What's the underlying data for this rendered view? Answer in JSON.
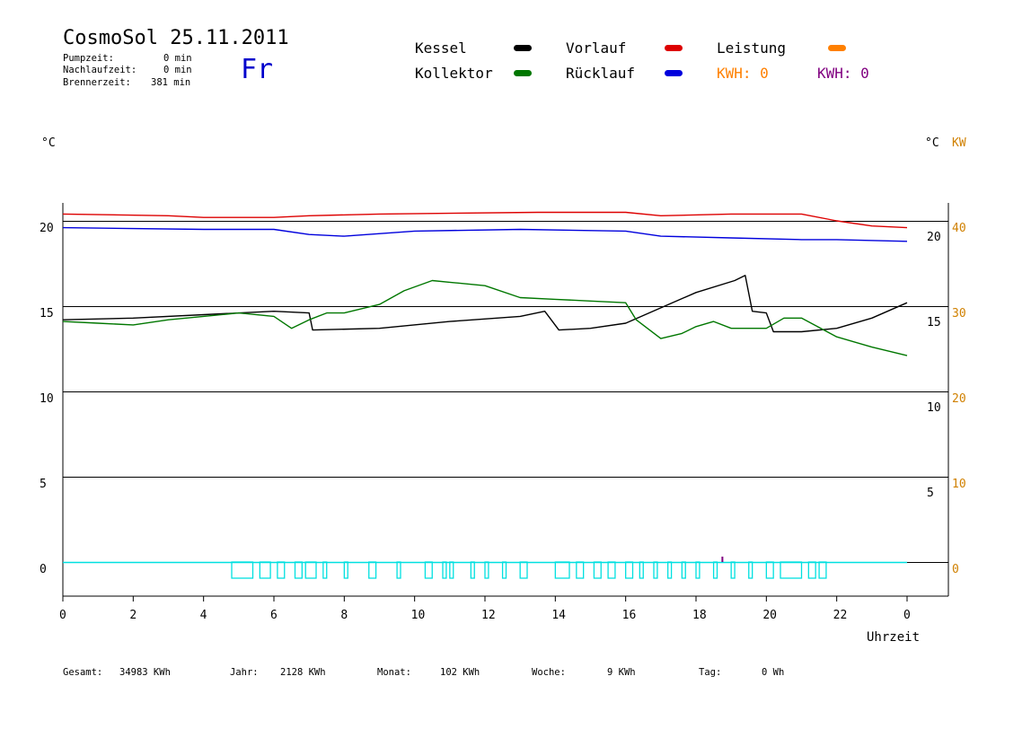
{
  "header": {
    "title": "CosmoSol 25.11.2011",
    "day": "Fr",
    "stats": [
      {
        "label": "Pumpzeit:",
        "value": "0 min"
      },
      {
        "label": "Nachlaufzeit:",
        "value": "0 min"
      },
      {
        "label": "Brennerzeit:",
        "value": "381 min"
      }
    ]
  },
  "legend": {
    "kessel": "Kessel",
    "kollektor": "Kollektor",
    "vorlauf": "Vorlauf",
    "ruecklauf": "Rücklauf",
    "leistung": "Leistung",
    "kwh_orange": "KWH: 0",
    "kwh_purple": "KWH: 0"
  },
  "colors": {
    "kessel": "#000000",
    "kollektor": "#007700",
    "vorlauf": "#dd0000",
    "ruecklauf": "#0000dd",
    "leistung": "#ff8000",
    "kwh_purple": "#800080",
    "pump": "#00e0e0"
  },
  "axis": {
    "left_unit": "°C",
    "right_unit": "°C",
    "right_unit2": "KW",
    "xlabel": "Uhrzeit"
  },
  "footer": [
    {
      "label": "Gesamt:",
      "value": "34983 KWh"
    },
    {
      "label": "Jahr:",
      "value": "2128 KWh"
    },
    {
      "label": "Monat:",
      "value": "102 KWh"
    },
    {
      "label": "Woche:",
      "value": "9 KWh"
    },
    {
      "label": "Tag:",
      "value": "0 Wh"
    }
  ],
  "chart_data": {
    "type": "line",
    "x_unit": "hour",
    "x_ticks": [
      "0",
      "2",
      "4",
      "6",
      "8",
      "10",
      "12",
      "14",
      "16",
      "18",
      "20",
      "22",
      "0"
    ],
    "xlim": [
      0,
      24
    ],
    "left_ticks": [
      "0",
      "5",
      "10",
      "15",
      "20"
    ],
    "inner_ticks": [
      "5",
      "10",
      "15",
      "20"
    ],
    "right_ticks": [
      "0",
      "10",
      "20",
      "30",
      "40"
    ],
    "ylim": [
      0,
      20
    ],
    "series": [
      {
        "name": "Vorlauf",
        "color": "#dd0000",
        "points": [
          [
            0,
            20.4
          ],
          [
            3,
            20.3
          ],
          [
            4,
            20.2
          ],
          [
            6,
            20.2
          ],
          [
            7,
            20.3
          ],
          [
            9,
            20.4
          ],
          [
            13.5,
            20.5
          ],
          [
            16,
            20.5
          ],
          [
            17,
            20.3
          ],
          [
            19,
            20.4
          ],
          [
            21,
            20.4
          ],
          [
            22,
            20.0
          ],
          [
            23,
            19.7
          ],
          [
            24,
            19.6
          ]
        ]
      },
      {
        "name": "Rücklauf",
        "color": "#0000dd",
        "points": [
          [
            0,
            19.6
          ],
          [
            4,
            19.5
          ],
          [
            6,
            19.5
          ],
          [
            7,
            19.2
          ],
          [
            8,
            19.1
          ],
          [
            10,
            19.4
          ],
          [
            13,
            19.5
          ],
          [
            16,
            19.4
          ],
          [
            17,
            19.1
          ],
          [
            19,
            19.0
          ],
          [
            21,
            18.9
          ],
          [
            22,
            18.9
          ],
          [
            24,
            18.8
          ]
        ]
      },
      {
        "name": "Kessel",
        "color": "#000000",
        "points": [
          [
            0,
            14.2
          ],
          [
            2,
            14.3
          ],
          [
            4,
            14.5
          ],
          [
            6,
            14.7
          ],
          [
            7,
            14.6
          ],
          [
            7.1,
            13.6
          ],
          [
            9,
            13.7
          ],
          [
            11,
            14.1
          ],
          [
            13,
            14.4
          ],
          [
            13.7,
            14.7
          ],
          [
            14.1,
            13.6
          ],
          [
            15,
            13.7
          ],
          [
            16,
            14.0
          ],
          [
            17,
            14.9
          ],
          [
            18,
            15.8
          ],
          [
            19.1,
            16.5
          ],
          [
            19.4,
            16.8
          ],
          [
            19.6,
            14.7
          ],
          [
            20,
            14.6
          ],
          [
            20.2,
            13.5
          ],
          [
            21,
            13.5
          ],
          [
            22,
            13.7
          ],
          [
            23,
            14.3
          ],
          [
            24,
            15.2
          ]
        ]
      },
      {
        "name": "Kollektor",
        "color": "#007700",
        "points": [
          [
            0,
            14.1
          ],
          [
            1,
            14.0
          ],
          [
            2,
            13.9
          ],
          [
            3,
            14.2
          ],
          [
            4,
            14.4
          ],
          [
            5,
            14.6
          ],
          [
            6,
            14.4
          ],
          [
            6.5,
            13.7
          ],
          [
            7,
            14.2
          ],
          [
            7.5,
            14.6
          ],
          [
            8,
            14.6
          ],
          [
            9,
            15.1
          ],
          [
            9.7,
            15.9
          ],
          [
            10.5,
            16.5
          ],
          [
            11,
            16.4
          ],
          [
            12,
            16.2
          ],
          [
            13,
            15.5
          ],
          [
            14,
            15.4
          ],
          [
            15,
            15.3
          ],
          [
            16,
            15.2
          ],
          [
            16.3,
            14.2
          ],
          [
            17,
            13.1
          ],
          [
            17.6,
            13.4
          ],
          [
            18,
            13.8
          ],
          [
            18.5,
            14.1
          ],
          [
            19,
            13.7
          ],
          [
            20,
            13.7
          ],
          [
            20.5,
            14.3
          ],
          [
            21,
            14.3
          ],
          [
            22,
            13.2
          ],
          [
            23,
            12.6
          ],
          [
            24,
            12.1
          ]
        ]
      }
    ],
    "pump_intervals": [
      [
        4.8,
        5.4
      ],
      [
        5.6,
        5.9
      ],
      [
        6.1,
        6.3
      ],
      [
        6.6,
        6.8
      ],
      [
        6.9,
        7.2
      ],
      [
        7.4,
        7.5
      ],
      [
        8,
        8.1
      ],
      [
        8.7,
        8.9
      ],
      [
        9.5,
        9.6
      ],
      [
        10.3,
        10.5
      ],
      [
        10.8,
        10.9
      ],
      [
        11,
        11.1
      ],
      [
        11.6,
        11.7
      ],
      [
        12,
        12.1
      ],
      [
        12.5,
        12.6
      ],
      [
        13,
        13.2
      ],
      [
        14,
        14.4
      ],
      [
        14.6,
        14.8
      ],
      [
        15.1,
        15.3
      ],
      [
        15.5,
        15.7
      ],
      [
        16,
        16.2
      ],
      [
        16.4,
        16.5
      ],
      [
        16.8,
        16.9
      ],
      [
        17.2,
        17.3
      ],
      [
        17.6,
        17.7
      ],
      [
        18,
        18.1
      ],
      [
        18.5,
        18.6
      ],
      [
        19,
        19.1
      ],
      [
        19.5,
        19.6
      ],
      [
        20,
        20.2
      ],
      [
        20.4,
        21
      ],
      [
        21.2,
        21.4
      ],
      [
        21.5,
        21.7
      ]
    ]
  }
}
